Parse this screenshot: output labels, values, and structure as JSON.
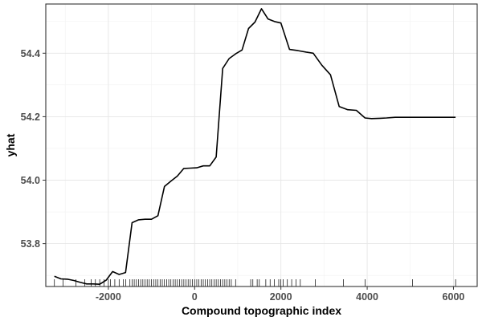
{
  "chart_data": {
    "type": "line",
    "title": "",
    "xlabel": "Compound topographic index",
    "ylabel": "yhat",
    "xlim": [
      -3450,
      6550
    ],
    "ylim": [
      53.665,
      54.555
    ],
    "x_ticks": [
      -2000,
      0,
      2000,
      4000,
      6000
    ],
    "x_tick_labels": [
      "-2000",
      "0",
      "2000",
      "4000",
      "6000"
    ],
    "y_ticks": [
      53.8,
      54.0,
      54.2,
      54.4
    ],
    "y_tick_labels": [
      "53.8",
      "54.0",
      "54.2",
      "54.4"
    ],
    "grid": true,
    "line_color": "#000000",
    "series": [
      {
        "x": [
          -3250,
          -3100,
          -2950,
          -2800,
          -2650,
          -2500,
          -2350,
          -2200,
          -2050,
          -1900,
          -1750,
          -1600,
          -1450,
          -1300,
          -1150,
          -1000,
          -850,
          -700,
          -550,
          -400,
          -250,
          -100,
          50,
          200,
          350,
          500,
          650,
          800,
          950,
          1100,
          1250,
          1400,
          1550,
          1700,
          1850,
          2000,
          2200,
          2400,
          2600,
          2750,
          2950,
          3150,
          3350,
          3550,
          3750,
          3950,
          4100,
          4300,
          4450,
          4650,
          4850,
          5050,
          5250,
          5450,
          5650,
          5850,
          6050
        ],
        "y": [
          53.697,
          53.689,
          53.688,
          53.684,
          53.678,
          53.673,
          53.673,
          53.672,
          53.685,
          53.712,
          53.703,
          53.709,
          53.866,
          53.875,
          53.877,
          53.877,
          53.888,
          53.98,
          53.997,
          54.013,
          54.037,
          54.038,
          54.039,
          54.045,
          54.045,
          54.073,
          54.352,
          54.383,
          54.398,
          54.41,
          54.478,
          54.498,
          54.54,
          54.508,
          54.5,
          54.495,
          54.412,
          54.408,
          54.403,
          54.4,
          54.362,
          54.332,
          54.232,
          54.222,
          54.22,
          54.196,
          54.194,
          54.195,
          54.196,
          54.198,
          54.198,
          54.198,
          54.198,
          54.198,
          54.198,
          54.198,
          54.198
        ]
      }
    ],
    "rug_x": [
      -3250,
      -3050,
      -2750,
      -2550,
      -2400,
      -2300,
      -2200,
      -2100,
      -2000,
      -1950,
      -1850,
      -1750,
      -1650,
      -1600,
      -1500,
      -1450,
      -1400,
      -1350,
      -1300,
      -1250,
      -1200,
      -1150,
      -1100,
      -1050,
      -1000,
      -950,
      -900,
      -850,
      -800,
      -750,
      -700,
      -650,
      -600,
      -550,
      -500,
      -450,
      -400,
      -350,
      -300,
      -250,
      -200,
      -150,
      -100,
      -50,
      0,
      50,
      100,
      150,
      200,
      250,
      300,
      350,
      400,
      450,
      500,
      550,
      600,
      650,
      700,
      750,
      800,
      850,
      950,
      1300,
      1350,
      1450,
      1500,
      1650,
      1750,
      1850,
      1950,
      2000,
      2050,
      2150,
      2250,
      2350,
      2450,
      2800,
      3450,
      3950,
      5050,
      6050
    ]
  }
}
